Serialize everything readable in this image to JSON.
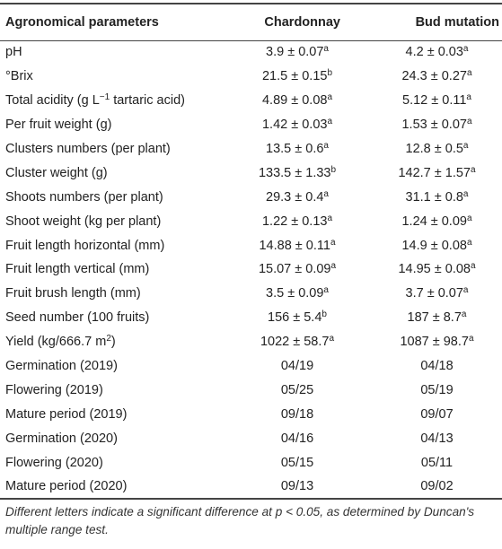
{
  "table": {
    "headers": [
      "Agronomical parameters",
      "Chardonnay",
      "Bud mutation"
    ],
    "rows": [
      {
        "param": "pH",
        "param_sup": "",
        "param_after": "",
        "c1": "3.9 ± 0.07",
        "c1_sup": "a",
        "c2": "4.2 ± 0.03",
        "c2_sup": "a"
      },
      {
        "param": "°Brix",
        "param_sup": "",
        "param_after": "",
        "c1": "21.5 ± 0.15",
        "c1_sup": "b",
        "c2": "24.3 ± 0.27",
        "c2_sup": "a"
      },
      {
        "param": "Total acidity (g L",
        "param_sup": "−1",
        "param_after": " tartaric acid)",
        "c1": "4.89 ± 0.08",
        "c1_sup": "a",
        "c2": "5.12 ± 0.11",
        "c2_sup": "a"
      },
      {
        "param": "Per fruit weight (g)",
        "param_sup": "",
        "param_after": "",
        "c1": "1.42 ± 0.03",
        "c1_sup": "a",
        "c2": "1.53 ± 0.07",
        "c2_sup": "a"
      },
      {
        "param": "Clusters numbers (per plant)",
        "param_sup": "",
        "param_after": "",
        "c1": "13.5 ± 0.6",
        "c1_sup": "a",
        "c2": "12.8 ± 0.5",
        "c2_sup": "a"
      },
      {
        "param": "Cluster weight (g)",
        "param_sup": "",
        "param_after": "",
        "c1": "133.5 ± 1.33",
        "c1_sup": "b",
        "c2": "142.7 ± 1.57",
        "c2_sup": "a"
      },
      {
        "param": "Shoots numbers (per plant)",
        "param_sup": "",
        "param_after": "",
        "c1": "29.3 ± 0.4",
        "c1_sup": "a",
        "c2": "31.1 ± 0.8",
        "c2_sup": "a"
      },
      {
        "param": "Shoot weight (kg per plant)",
        "param_sup": "",
        "param_after": "",
        "c1": "1.22 ± 0.13",
        "c1_sup": "a",
        "c2": "1.24 ± 0.09",
        "c2_sup": "a"
      },
      {
        "param": "Fruit length horizontal (mm)",
        "param_sup": "",
        "param_after": "",
        "c1": "14.88 ± 0.11",
        "c1_sup": "a",
        "c2": "14.9 ± 0.08",
        "c2_sup": "a"
      },
      {
        "param": "Fruit length vertical (mm)",
        "param_sup": "",
        "param_after": "",
        "c1": "15.07 ± 0.09",
        "c1_sup": "a",
        "c2": "14.95 ± 0.08",
        "c2_sup": "a"
      },
      {
        "param": "Fruit brush length (mm)",
        "param_sup": "",
        "param_after": "",
        "c1": "3.5 ± 0.09",
        "c1_sup": "a",
        "c2": "3.7 ± 0.07",
        "c2_sup": "a"
      },
      {
        "param": "Seed number (100 fruits)",
        "param_sup": "",
        "param_after": "",
        "c1": "156 ± 5.4",
        "c1_sup": "b",
        "c2": "187 ± 8.7",
        "c2_sup": "a"
      },
      {
        "param": "Yield (kg/666.7 m",
        "param_sup": "2",
        "param_after": ")",
        "c1": "1022 ± 58.7",
        "c1_sup": "a",
        "c2": "1087 ± 98.7",
        "c2_sup": "a"
      },
      {
        "param": "Germination (2019)",
        "param_sup": "",
        "param_after": "",
        "c1": "04/19",
        "c1_sup": "",
        "c2": "04/18",
        "c2_sup": ""
      },
      {
        "param": "Flowering (2019)",
        "param_sup": "",
        "param_after": "",
        "c1": "05/25",
        "c1_sup": "",
        "c2": "05/19",
        "c2_sup": ""
      },
      {
        "param": "Mature period (2019)",
        "param_sup": "",
        "param_after": "",
        "c1": "09/18",
        "c1_sup": "",
        "c2": "09/07",
        "c2_sup": ""
      },
      {
        "param": "Germination (2020)",
        "param_sup": "",
        "param_after": "",
        "c1": "04/16",
        "c1_sup": "",
        "c2": "04/13",
        "c2_sup": ""
      },
      {
        "param": "Flowering (2020)",
        "param_sup": "",
        "param_after": "",
        "c1": "05/15",
        "c1_sup": "",
        "c2": "05/11",
        "c2_sup": ""
      },
      {
        "param": "Mature period (2020)",
        "param_sup": "",
        "param_after": "",
        "c1": "09/13",
        "c1_sup": "",
        "c2": "09/02",
        "c2_sup": ""
      }
    ]
  },
  "footnote": "Different letters indicate a significant difference at p < 0.05, as determined by Duncan's multiple range test."
}
